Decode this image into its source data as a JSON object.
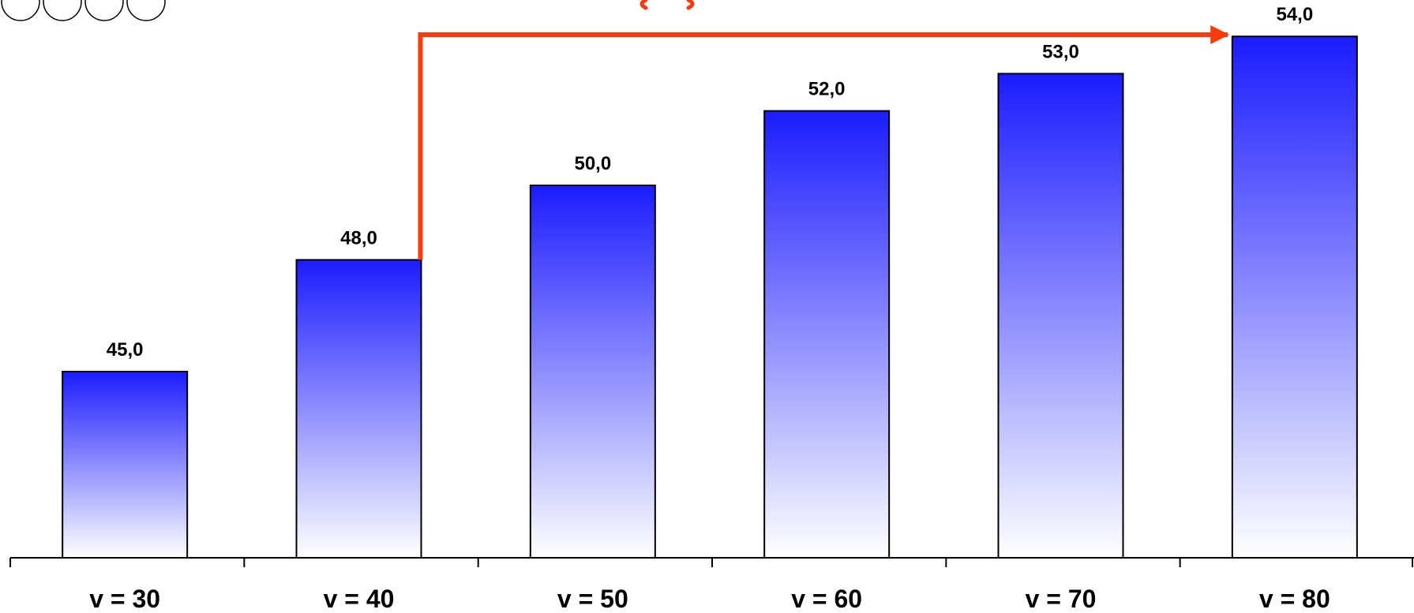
{
  "chart_data": {
    "type": "bar",
    "categories": [
      "v = 30",
      "v = 40",
      "v = 50",
      "v = 60",
      "v = 70",
      "v = 80"
    ],
    "values": [
      45.0,
      48.0,
      50.0,
      52.0,
      53.0,
      54.0
    ],
    "value_labels": [
      "45,0",
      "48,0",
      "50,0",
      "52,0",
      "53,0",
      "54,0"
    ],
    "title": "",
    "xlabel": "",
    "ylabel": "",
    "ylim": [
      40,
      54
    ],
    "grid": false,
    "legend": "none",
    "annotation": {
      "type": "arrow",
      "from_category": "v = 40",
      "to_category": "v = 80",
      "color": "#ff3a0a"
    }
  },
  "colors": {
    "bar_top": "#1c1cff",
    "bar_bottom": "#ffffff",
    "bar_border": "#000000",
    "axis": "#000000",
    "arrow": "#ff3a0a"
  },
  "decorations": {
    "top_left_icon": "four-circles-icon",
    "cropped_title_glyph_color": "#ff3a0a"
  }
}
